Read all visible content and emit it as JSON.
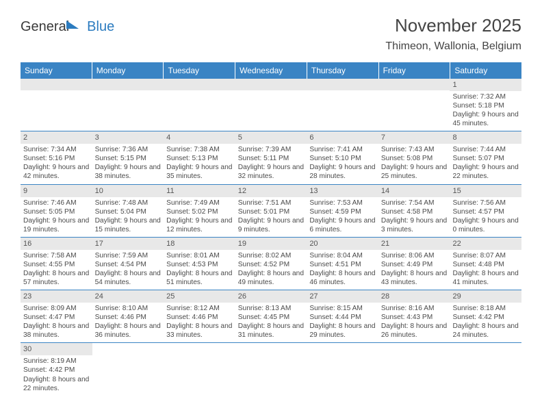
{
  "brand": {
    "part1": "General",
    "part2": "Blue"
  },
  "title": "November 2025",
  "location": "Thimeon, Wallonia, Belgium",
  "weekdays": [
    "Sunday",
    "Monday",
    "Tuesday",
    "Wednesday",
    "Thursday",
    "Friday",
    "Saturday"
  ],
  "colors": {
    "header_bg": "#3a84c4",
    "header_text": "#ffffff",
    "daynum_bg": "#e8e8e8",
    "row_divider": "#3a84c4",
    "text": "#4a4a4a",
    "brand_blue": "#2b7bbf"
  },
  "weeks": [
    [
      {
        "empty": true
      },
      {
        "empty": true
      },
      {
        "empty": true
      },
      {
        "empty": true
      },
      {
        "empty": true
      },
      {
        "empty": true
      },
      {
        "day": "1",
        "sunrise": "Sunrise: 7:32 AM",
        "sunset": "Sunset: 5:18 PM",
        "daylight": "Daylight: 9 hours and 45 minutes."
      }
    ],
    [
      {
        "day": "2",
        "sunrise": "Sunrise: 7:34 AM",
        "sunset": "Sunset: 5:16 PM",
        "daylight": "Daylight: 9 hours and 42 minutes."
      },
      {
        "day": "3",
        "sunrise": "Sunrise: 7:36 AM",
        "sunset": "Sunset: 5:15 PM",
        "daylight": "Daylight: 9 hours and 38 minutes."
      },
      {
        "day": "4",
        "sunrise": "Sunrise: 7:38 AM",
        "sunset": "Sunset: 5:13 PM",
        "daylight": "Daylight: 9 hours and 35 minutes."
      },
      {
        "day": "5",
        "sunrise": "Sunrise: 7:39 AM",
        "sunset": "Sunset: 5:11 PM",
        "daylight": "Daylight: 9 hours and 32 minutes."
      },
      {
        "day": "6",
        "sunrise": "Sunrise: 7:41 AM",
        "sunset": "Sunset: 5:10 PM",
        "daylight": "Daylight: 9 hours and 28 minutes."
      },
      {
        "day": "7",
        "sunrise": "Sunrise: 7:43 AM",
        "sunset": "Sunset: 5:08 PM",
        "daylight": "Daylight: 9 hours and 25 minutes."
      },
      {
        "day": "8",
        "sunrise": "Sunrise: 7:44 AM",
        "sunset": "Sunset: 5:07 PM",
        "daylight": "Daylight: 9 hours and 22 minutes."
      }
    ],
    [
      {
        "day": "9",
        "sunrise": "Sunrise: 7:46 AM",
        "sunset": "Sunset: 5:05 PM",
        "daylight": "Daylight: 9 hours and 19 minutes."
      },
      {
        "day": "10",
        "sunrise": "Sunrise: 7:48 AM",
        "sunset": "Sunset: 5:04 PM",
        "daylight": "Daylight: 9 hours and 15 minutes."
      },
      {
        "day": "11",
        "sunrise": "Sunrise: 7:49 AM",
        "sunset": "Sunset: 5:02 PM",
        "daylight": "Daylight: 9 hours and 12 minutes."
      },
      {
        "day": "12",
        "sunrise": "Sunrise: 7:51 AM",
        "sunset": "Sunset: 5:01 PM",
        "daylight": "Daylight: 9 hours and 9 minutes."
      },
      {
        "day": "13",
        "sunrise": "Sunrise: 7:53 AM",
        "sunset": "Sunset: 4:59 PM",
        "daylight": "Daylight: 9 hours and 6 minutes."
      },
      {
        "day": "14",
        "sunrise": "Sunrise: 7:54 AM",
        "sunset": "Sunset: 4:58 PM",
        "daylight": "Daylight: 9 hours and 3 minutes."
      },
      {
        "day": "15",
        "sunrise": "Sunrise: 7:56 AM",
        "sunset": "Sunset: 4:57 PM",
        "daylight": "Daylight: 9 hours and 0 minutes."
      }
    ],
    [
      {
        "day": "16",
        "sunrise": "Sunrise: 7:58 AM",
        "sunset": "Sunset: 4:55 PM",
        "daylight": "Daylight: 8 hours and 57 minutes."
      },
      {
        "day": "17",
        "sunrise": "Sunrise: 7:59 AM",
        "sunset": "Sunset: 4:54 PM",
        "daylight": "Daylight: 8 hours and 54 minutes."
      },
      {
        "day": "18",
        "sunrise": "Sunrise: 8:01 AM",
        "sunset": "Sunset: 4:53 PM",
        "daylight": "Daylight: 8 hours and 51 minutes."
      },
      {
        "day": "19",
        "sunrise": "Sunrise: 8:02 AM",
        "sunset": "Sunset: 4:52 PM",
        "daylight": "Daylight: 8 hours and 49 minutes."
      },
      {
        "day": "20",
        "sunrise": "Sunrise: 8:04 AM",
        "sunset": "Sunset: 4:51 PM",
        "daylight": "Daylight: 8 hours and 46 minutes."
      },
      {
        "day": "21",
        "sunrise": "Sunrise: 8:06 AM",
        "sunset": "Sunset: 4:49 PM",
        "daylight": "Daylight: 8 hours and 43 minutes."
      },
      {
        "day": "22",
        "sunrise": "Sunrise: 8:07 AM",
        "sunset": "Sunset: 4:48 PM",
        "daylight": "Daylight: 8 hours and 41 minutes."
      }
    ],
    [
      {
        "day": "23",
        "sunrise": "Sunrise: 8:09 AM",
        "sunset": "Sunset: 4:47 PM",
        "daylight": "Daylight: 8 hours and 38 minutes."
      },
      {
        "day": "24",
        "sunrise": "Sunrise: 8:10 AM",
        "sunset": "Sunset: 4:46 PM",
        "daylight": "Daylight: 8 hours and 36 minutes."
      },
      {
        "day": "25",
        "sunrise": "Sunrise: 8:12 AM",
        "sunset": "Sunset: 4:46 PM",
        "daylight": "Daylight: 8 hours and 33 minutes."
      },
      {
        "day": "26",
        "sunrise": "Sunrise: 8:13 AM",
        "sunset": "Sunset: 4:45 PM",
        "daylight": "Daylight: 8 hours and 31 minutes."
      },
      {
        "day": "27",
        "sunrise": "Sunrise: 8:15 AM",
        "sunset": "Sunset: 4:44 PM",
        "daylight": "Daylight: 8 hours and 29 minutes."
      },
      {
        "day": "28",
        "sunrise": "Sunrise: 8:16 AM",
        "sunset": "Sunset: 4:43 PM",
        "daylight": "Daylight: 8 hours and 26 minutes."
      },
      {
        "day": "29",
        "sunrise": "Sunrise: 8:18 AM",
        "sunset": "Sunset: 4:42 PM",
        "daylight": "Daylight: 8 hours and 24 minutes."
      }
    ],
    [
      {
        "day": "30",
        "sunrise": "Sunrise: 8:19 AM",
        "sunset": "Sunset: 4:42 PM",
        "daylight": "Daylight: 8 hours and 22 minutes."
      },
      {
        "blank": true
      },
      {
        "blank": true
      },
      {
        "blank": true
      },
      {
        "blank": true
      },
      {
        "blank": true
      },
      {
        "blank": true
      }
    ]
  ]
}
